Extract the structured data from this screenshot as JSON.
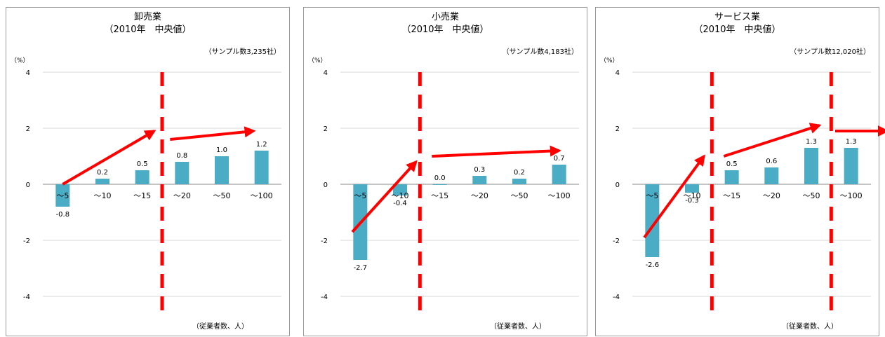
{
  "colors": {
    "bar": "#4bacc6",
    "grid": "#d9d9d9",
    "annotation": "#ff0000",
    "axis": "#888888"
  },
  "chart_data": [
    {
      "type": "bar",
      "title": "卸売業",
      "subtitle": "（2010年　中央値）",
      "sample_note": "（サンプル数3,235社）",
      "ylabel": "（%）",
      "xlabel": "（従業者数、人）",
      "categories": [
        "～5",
        "～10",
        "～15",
        "～20",
        "～50",
        "～100"
      ],
      "values": [
        -0.8,
        0.2,
        0.5,
        0.8,
        1.0,
        1.2
      ],
      "value_labels": [
        "-0.8",
        "0.2",
        "0.5",
        "0.8",
        "1.0",
        "1.2"
      ],
      "ylim": [
        -4,
        4
      ],
      "yticks": [
        4,
        2,
        0,
        -2,
        -4
      ],
      "grid": true,
      "annotations": {
        "dividers_after_category": [
          2.5
        ],
        "arrows": [
          {
            "from": [
              0,
              0
            ],
            "to": [
              2.3,
              1.9
            ]
          },
          {
            "from": [
              2.7,
              1.6
            ],
            "to": [
              4.8,
              1.9
            ]
          }
        ]
      }
    },
    {
      "type": "bar",
      "title": "小売業",
      "subtitle": "（2010年　中央値）",
      "sample_note": "（サンプル数4,183社）",
      "ylabel": "（%）",
      "xlabel": "（従業者数、人）",
      "categories": [
        "～5",
        "～10",
        "～15",
        "～20",
        "～50",
        "～100"
      ],
      "values": [
        -2.7,
        -0.4,
        0.0,
        0.3,
        0.2,
        0.7
      ],
      "value_labels": [
        "-2.7",
        "-0.4",
        "0.0",
        "0.3",
        "0.2",
        "0.7"
      ],
      "ylim": [
        -4,
        4
      ],
      "yticks": [
        4,
        2,
        0,
        -2,
        -4
      ],
      "grid": true,
      "annotations": {
        "dividers_after_category": [
          1.5
        ],
        "arrows": [
          {
            "from": [
              -0.2,
              -1.7
            ],
            "to": [
              1.4,
              0.8
            ]
          },
          {
            "from": [
              1.8,
              1.0
            ],
            "to": [
              5.0,
              1.2
            ]
          }
        ]
      }
    },
    {
      "type": "bar",
      "title": "サービス業",
      "subtitle": "（2010年　中央値）",
      "sample_note": "（サンプル数12,020社）",
      "ylabel": "（%）",
      "xlabel": "（従業者数、人）",
      "categories": [
        "～5",
        "～10",
        "～15",
        "～20",
        "～50",
        "～100"
      ],
      "values": [
        -2.6,
        -0.3,
        0.5,
        0.6,
        1.3,
        1.3
      ],
      "value_labels": [
        "-2.6",
        "-0.3",
        "0.5",
        "0.6",
        "1.3",
        "1.3"
      ],
      "ylim": [
        -4,
        4
      ],
      "yticks": [
        4,
        2,
        0,
        -2,
        -4
      ],
      "grid": true,
      "annotations": {
        "dividers_after_category": [
          1.5,
          4.5
        ],
        "arrows": [
          {
            "from": [
              -0.2,
              -1.9
            ],
            "to": [
              1.3,
              1.0
            ]
          },
          {
            "from": [
              1.8,
              1.0
            ],
            "to": [
              4.2,
              2.1
            ]
          },
          {
            "from": [
              4.6,
              1.9
            ],
            "to": [
              5.9,
              1.9
            ]
          }
        ]
      }
    }
  ]
}
